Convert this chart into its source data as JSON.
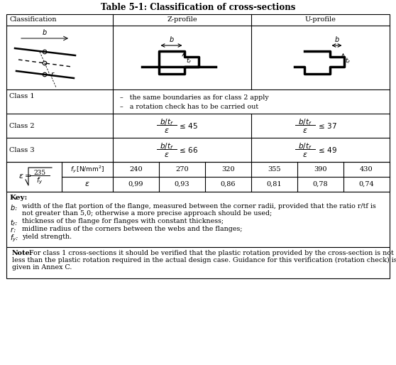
{
  "title": "Table 5-1: Classification of cross-sections",
  "col_headers": [
    "Classification",
    "Z-profile",
    "U-profile"
  ],
  "class1_text": [
    "the same boundaries as for class 2 apply",
    "a rotation check has to be carried out"
  ],
  "fy_values": [
    "240",
    "270",
    "320",
    "355",
    "390",
    "430"
  ],
  "eps_values": [
    "0,99",
    "0,93",
    "0,86",
    "0,81",
    "0,78",
    "0,74"
  ],
  "key_title": "Key:",
  "key_items": [
    [
      "b:",
      "width of the flat portion of the flange, measured between the corner radii, provided that the ratio r/tf is\nnot greater than 5,0; otherwise a more precise approach should be used;"
    ],
    [
      "tf:",
      "thickness of the flange for flanges with constant thickness;"
    ],
    [
      "r:",
      "midline radius of the corners between the webs and the flanges;"
    ],
    [
      "fy:",
      "yield strength."
    ]
  ],
  "note_text": "Note:  For class 1 cross-sections it should be verified that the plastic rotation provided by the cross-section is not\nless than the plastic rotation required in the actual design case. Guidance for this verification (rotation check) is\ngiven in Annex C.",
  "bg_color": "#ffffff",
  "text_color": "#000000"
}
